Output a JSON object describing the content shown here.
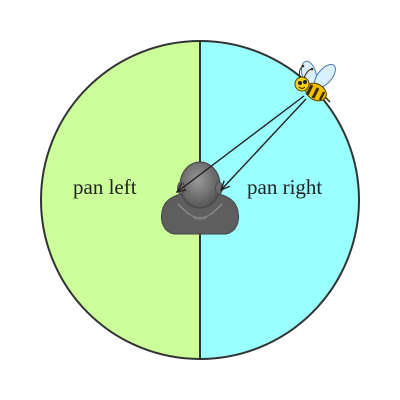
{
  "diagram": {
    "left_label": "pan left",
    "right_label": "pan right",
    "left_color": "#ccff99",
    "right_color": "#99ffff",
    "outline_color": "#333333",
    "listener_icon": "head-and-shoulders-icon",
    "source_icon": "bee-icon"
  }
}
